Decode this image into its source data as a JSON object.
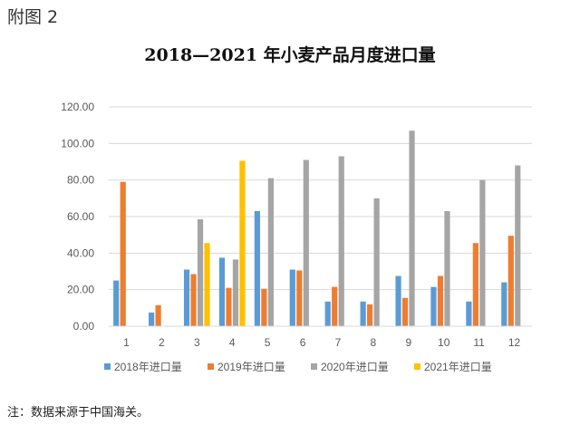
{
  "figure_label": "附图 2",
  "footnote": "注：数据来源于中国海关。",
  "chart_data": {
    "type": "bar",
    "title": "2018—2021 年小麦产品月度进口量",
    "xlabel": "",
    "ylabel": "",
    "ylim": [
      0,
      120
    ],
    "yticks": [
      "0.00",
      "20.00",
      "40.00",
      "60.00",
      "80.00",
      "100.00",
      "120.00"
    ],
    "grid": true,
    "legend": "bottom",
    "categories": [
      "1",
      "2",
      "3",
      "4",
      "5",
      "6",
      "7",
      "8",
      "9",
      "10",
      "11",
      "12"
    ],
    "series": [
      {
        "name": "2018年进口量",
        "color": "#5b9bd5",
        "values": [
          25,
          7.5,
          31,
          37.5,
          63,
          31,
          13.5,
          13.5,
          27.5,
          21.5,
          13.5,
          24
        ]
      },
      {
        "name": "2019年进口量",
        "color": "#ed7d31",
        "values": [
          79,
          11.5,
          28.5,
          21,
          20.5,
          30.5,
          21.5,
          12,
          15.5,
          27.5,
          45.5,
          49.5
        ]
      },
      {
        "name": "2020年进口量",
        "color": "#a5a5a5",
        "values": [
          null,
          null,
          58.5,
          36.5,
          81,
          91,
          93,
          70,
          107,
          63,
          80,
          88
        ]
      },
      {
        "name": "2021年进口量",
        "color": "#ffc000",
        "values": [
          null,
          null,
          45.5,
          90.5,
          null,
          null,
          null,
          null,
          null,
          null,
          null,
          null
        ]
      }
    ]
  }
}
